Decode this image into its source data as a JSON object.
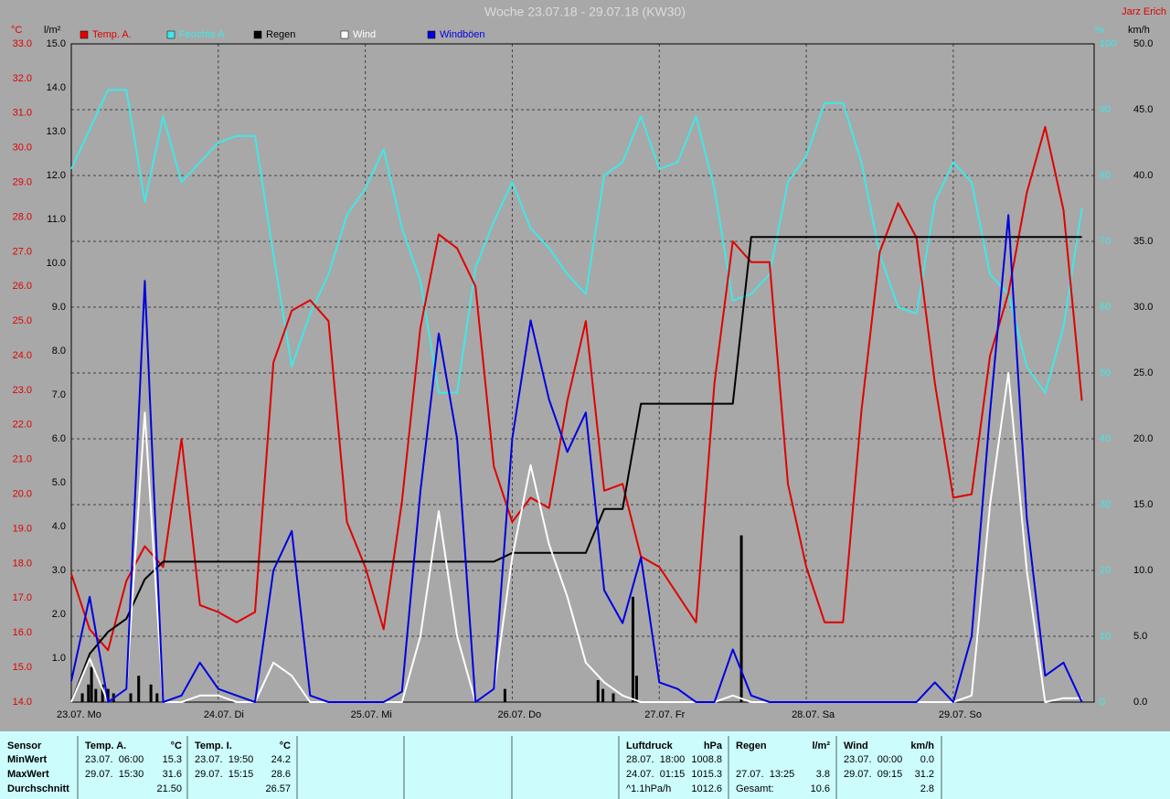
{
  "chart_data": {
    "type": "line",
    "title": "Woche 23.07.18 - 29.07.18 (KW30)",
    "author": "Jarz Erich",
    "ylabel": "°C",
    "y2label": "%",
    "y3label": "l/m²",
    "y4label": "km/h",
    "xlim": [
      0,
      167
    ],
    "xticks": [
      {
        "value": 0,
        "label": "23.07. Mo"
      },
      {
        "value": 24,
        "label": "24.07. Di"
      },
      {
        "value": 48,
        "label": "25.07. Mi"
      },
      {
        "value": 72,
        "label": "26.07. Do"
      },
      {
        "value": 96,
        "label": "27.07. Fr"
      },
      {
        "value": 120,
        "label": "28.07. Sa"
      },
      {
        "value": 144,
        "label": "29.07. So"
      }
    ],
    "ylim": [
      14,
      33
    ],
    "yticks": [
      {
        "value": 14,
        "label": "14.0"
      },
      {
        "value": 15,
        "label": "15.0"
      },
      {
        "value": 16,
        "label": "16.0"
      },
      {
        "value": 17,
        "label": "17.0"
      },
      {
        "value": 18,
        "label": "18.0"
      },
      {
        "value": 19,
        "label": "19.0"
      },
      {
        "value": 20,
        "label": "20.0"
      },
      {
        "value": 21,
        "label": "21.0"
      },
      {
        "value": 22,
        "label": "22.0"
      },
      {
        "value": 23,
        "label": "23.0"
      },
      {
        "value": 24,
        "label": "24.0"
      },
      {
        "value": 25,
        "label": "25.0"
      },
      {
        "value": 26,
        "label": "26.0"
      },
      {
        "value": 27,
        "label": "27.0"
      },
      {
        "value": 28,
        "label": "28.0"
      },
      {
        "value": 29,
        "label": "29.0"
      },
      {
        "value": 30,
        "label": "30.0"
      },
      {
        "value": 31,
        "label": "31.0"
      },
      {
        "value": 32,
        "label": "32.0"
      },
      {
        "value": 33,
        "label": "33.0"
      }
    ],
    "y2lim": [
      0,
      100
    ],
    "y2ticks": [
      0,
      10,
      20,
      30,
      40,
      50,
      60,
      70,
      80,
      90,
      100
    ],
    "y3lim": [
      0,
      15
    ],
    "y3ticks": [
      {
        "value": 1,
        "label": "1.0"
      },
      {
        "value": 2,
        "label": "2.0"
      },
      {
        "value": 3,
        "label": "3.0"
      },
      {
        "value": 4,
        "label": "4.0"
      },
      {
        "value": 5,
        "label": "5.0"
      },
      {
        "value": 6,
        "label": "6.0"
      },
      {
        "value": 7,
        "label": "7.0"
      },
      {
        "value": 8,
        "label": "8.0"
      },
      {
        "value": 9,
        "label": "9.0"
      },
      {
        "value": 10,
        "label": "10.0"
      },
      {
        "value": 11,
        "label": "11.0"
      },
      {
        "value": 12,
        "label": "12.0"
      },
      {
        "value": 13,
        "label": "13.0"
      },
      {
        "value": 14,
        "label": "14.0"
      },
      {
        "value": 15,
        "label": "15.0"
      }
    ],
    "y4lim": [
      0,
      50
    ],
    "y4ticks": [
      {
        "value": 0,
        "label": "0.0"
      },
      {
        "value": 5,
        "label": "5.0"
      },
      {
        "value": 10,
        "label": "10.0"
      },
      {
        "value": 15,
        "label": "15.0"
      },
      {
        "value": 20,
        "label": "20.0"
      },
      {
        "value": 25,
        "label": "25.0"
      },
      {
        "value": 30,
        "label": "30.0"
      },
      {
        "value": 35,
        "label": "35.0"
      },
      {
        "value": 40,
        "label": "40.0"
      },
      {
        "value": 45,
        "label": "45.0"
      },
      {
        "value": 50,
        "label": "50.0"
      }
    ],
    "grid": true,
    "x": [
      0,
      3,
      6,
      9,
      12,
      15,
      18,
      21,
      24,
      27,
      30,
      33,
      36,
      39,
      42,
      45,
      48,
      51,
      54,
      57,
      60,
      63,
      66,
      69,
      72,
      75,
      78,
      81,
      84,
      87,
      90,
      93,
      96,
      99,
      102,
      105,
      108,
      111,
      114,
      117,
      120,
      123,
      126,
      129,
      132,
      135,
      138,
      141,
      144,
      147,
      150,
      153,
      156,
      159,
      162,
      165
    ],
    "series": [
      {
        "name": "Temp. A.",
        "color": "#e00000",
        "axis": "y",
        "values": [
          17.7,
          16.1,
          15.5,
          17.5,
          18.5,
          17.9,
          21.6,
          16.8,
          16.6,
          16.3,
          16.6,
          23.8,
          25.3,
          25.6,
          25.0,
          19.2,
          17.9,
          16.1,
          19.8,
          24.8,
          27.5,
          27.1,
          26.0,
          20.8,
          19.2,
          19.9,
          19.6,
          22.7,
          25.0,
          20.1,
          20.3,
          18.2,
          17.9,
          17.1,
          16.3,
          23.2,
          27.3,
          26.7,
          26.7,
          20.3,
          17.9,
          16.3,
          16.3,
          22.4,
          27.0,
          28.4,
          27.4,
          23.2,
          19.9,
          20.0,
          24.0,
          25.8,
          28.7,
          30.6,
          28.2,
          22.7
        ]
      },
      {
        "name": "Feuchte A.",
        "color": "#40e8e8",
        "axis": "y2",
        "values": [
          81,
          87,
          93,
          93,
          76,
          89,
          79,
          82,
          85,
          86,
          86,
          68,
          51,
          59,
          65,
          74,
          78,
          84,
          72,
          64,
          47,
          47,
          66,
          73,
          79,
          72,
          69,
          65,
          62,
          80,
          82,
          89,
          81,
          82,
          89,
          78,
          61,
          62,
          65,
          79,
          83,
          91,
          91,
          82,
          68,
          60,
          59,
          76,
          82,
          79,
          65,
          62,
          51,
          47,
          57,
          75
        ]
      },
      {
        "name": "Regen",
        "color": "#000000",
        "axis": "y3",
        "values": [
          0,
          1.1,
          1.6,
          1.9,
          2.8,
          3.2,
          3.2,
          3.2,
          3.2,
          3.2,
          3.2,
          3.2,
          3.2,
          3.2,
          3.2,
          3.2,
          3.2,
          3.2,
          3.2,
          3.2,
          3.2,
          3.2,
          3.2,
          3.2,
          3.4,
          3.4,
          3.4,
          3.4,
          3.4,
          4.4,
          4.4,
          6.8,
          6.8,
          6.8,
          6.8,
          6.8,
          6.8,
          10.6,
          10.6,
          10.6,
          10.6,
          10.6,
          10.6,
          10.6,
          10.6,
          10.6,
          10.6,
          10.6,
          10.6,
          10.6,
          10.6,
          10.6,
          10.6,
          10.6,
          10.6,
          10.6
        ],
        "bars_x": [
          1.8,
          2.8,
          3.3,
          4.0,
          5.1,
          6.0,
          6.9,
          9.7,
          11.0,
          13.0,
          14.0,
          70.8,
          86.0,
          86.8,
          88.5,
          91.7,
          92.3,
          109.4
        ],
        "bars": [
          0.2,
          0.4,
          0.8,
          0.3,
          0.4,
          0.3,
          0.2,
          0.2,
          0.6,
          0.4,
          0.2,
          0.3,
          0.5,
          0.3,
          0.2,
          2.4,
          0.6,
          3.8
        ]
      },
      {
        "name": "Wind",
        "color": "#ffffff",
        "axis": "y4",
        "values": [
          0,
          3.3,
          0,
          1,
          22,
          0,
          0,
          0.5,
          0.5,
          0,
          0,
          3,
          2,
          0,
          0,
          0,
          0,
          0,
          0,
          5,
          14.5,
          5,
          0,
          1,
          11,
          18,
          12,
          8,
          3,
          1.5,
          0.5,
          0,
          0,
          0,
          0,
          0,
          0.5,
          0,
          0,
          0,
          0,
          0,
          0,
          0,
          0,
          0,
          0,
          0,
          0,
          0.5,
          15,
          25,
          10,
          0,
          0.3,
          0.3
        ]
      },
      {
        "name": "Windböen",
        "color": "#0000e0",
        "axis": "y4",
        "values": [
          1.6,
          8,
          0,
          1,
          32,
          0,
          0.5,
          3,
          1,
          0.5,
          0,
          10,
          13,
          0.5,
          0,
          0,
          0,
          0,
          0.8,
          16,
          28,
          20,
          0,
          1,
          20,
          29,
          23,
          19,
          22,
          8.5,
          6,
          11,
          1.5,
          1,
          0,
          0,
          4,
          0.5,
          0,
          0,
          0,
          0,
          0,
          0,
          0,
          0,
          0,
          1.5,
          0,
          5,
          22,
          37,
          14,
          2,
          3,
          0
        ]
      }
    ]
  },
  "table": {
    "header": "Sensor",
    "row_labels": [
      "MinWert",
      "MaxWert",
      "Durchschnitt"
    ],
    "groups": [
      {
        "name": "Temp. A.",
        "unit": "°C",
        "rows": [
          [
            "23.07.  06:00",
            "15.3"
          ],
          [
            "29.07.  15:30",
            "31.6"
          ],
          [
            null,
            "21.50"
          ]
        ]
      },
      {
        "name": "Temp. I.",
        "unit": "°C",
        "rows": [
          [
            "23.07.  19:50",
            "24.2"
          ],
          [
            "29.07.  15:15",
            "28.6"
          ],
          [
            null,
            "26.57"
          ]
        ]
      },
      {
        "name": "Luftdruck",
        "unit": "hPa",
        "rows": [
          [
            "28.07.  18:00",
            "1008.8"
          ],
          [
            "24.07.  01:15",
            "1015.3"
          ],
          [
            "^1.1hPa/h",
            "1012.6"
          ]
        ]
      },
      {
        "name": "Regen",
        "unit": "l/m²",
        "rows": [
          [
            null,
            null
          ],
          [
            "27.07.  13:25",
            "3.8"
          ],
          [
            "Gesamt:",
            "10.6"
          ]
        ]
      },
      {
        "name": "Wind",
        "unit": "km/h",
        "rows": [
          [
            "23.07.  00:00",
            "0.0"
          ],
          [
            "29.07.  09:15",
            "31.2"
          ],
          [
            null,
            "2.8"
          ]
        ]
      }
    ]
  }
}
